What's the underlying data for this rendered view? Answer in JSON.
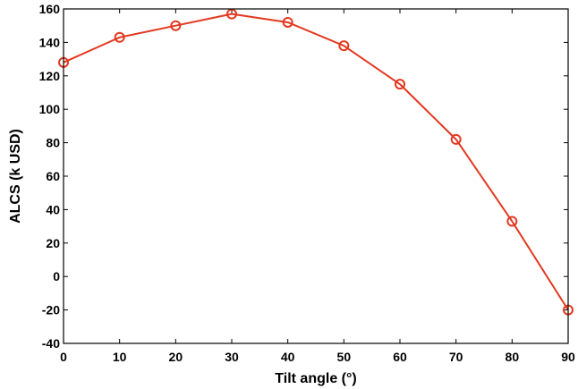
{
  "chart_data": {
    "type": "line",
    "title": "",
    "xlabel": "Tilt angle (°)",
    "ylabel": "ALCS (k USD)",
    "x": [
      0,
      10,
      20,
      30,
      40,
      50,
      60,
      70,
      80,
      90
    ],
    "series": [
      {
        "values": [
          128,
          143,
          150,
          157,
          152,
          138,
          115,
          82,
          33,
          -20
        ],
        "color": "#e2391f",
        "marker": "circle-open"
      }
    ],
    "xlim": [
      0,
      90
    ],
    "ylim": [
      -40,
      160
    ],
    "xticks": [
      0,
      10,
      20,
      30,
      40,
      50,
      60,
      70,
      80,
      90
    ],
    "yticks": [
      -40,
      -20,
      0,
      20,
      40,
      60,
      80,
      100,
      120,
      140,
      160
    ],
    "grid": false,
    "legend": "none"
  }
}
